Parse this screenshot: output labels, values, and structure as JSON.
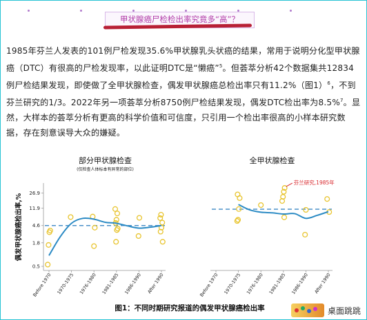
{
  "header": {
    "headline": "甲状腺癌尸检检出率究竟多“高”？"
  },
  "article": {
    "paragraph_parts": [
      "1985年芬兰人发表的101例尸检发现35.6%甲状腺乳头状癌的结果，常用于说明分化型甲状腺癌（DTC）有很高的尸检发现率，以此证明DTC是“懒癌”",
      "5",
      "。但荟萃分析42个数据集共12834例尸检结果发现，即使做了全甲状腺检查，偶发甲状腺癌总检出率只有11.2%（图1）",
      "6",
      "，不到芬兰研究的1/3。2022年另一项荟萃分析8750例尸检结果发现，偶发DTC检出率为8.5%",
      "7",
      "。显然，大样本的荟萃分析有更高的科学价值和可信度，只引用一个检出率很高的小样本研究数据，存在刻意误导大众的嫌疑。"
    ]
  },
  "figure": {
    "caption": "图1：不同时期研究报道的偶发甲状腺癌检出率",
    "watermark_text": "桌面跳跳"
  },
  "chart_data": [
    {
      "type": "scatter",
      "title": "部分甲状腺检查",
      "subtitle": "(仅检查人体标本有异常的部位)",
      "ylabel": "偶发甲状腺癌检出率,%",
      "yscale": "log",
      "yticks": [
        0.5,
        1.8,
        4.6,
        11.9,
        26.9
      ],
      "categories": [
        "Before 1970",
        "1970-1975",
        "1976-1980",
        "1981-1985",
        "1986-1990",
        "After 1990"
      ],
      "points": [
        {
          "x": "Before 1970",
          "y": 0.55
        },
        {
          "x": "Before 1970",
          "y": 1.6
        },
        {
          "x": "Before 1970",
          "y": 3.2
        },
        {
          "x": "Before 1970",
          "y": 3.5
        },
        {
          "x": "1970-1975",
          "y": 7.3
        },
        {
          "x": "1976-1980",
          "y": 1.5
        },
        {
          "x": "1976-1980",
          "y": 4.1
        },
        {
          "x": "1976-1980",
          "y": 7.5
        },
        {
          "x": "1981-1985",
          "y": 1.9
        },
        {
          "x": "1981-1985",
          "y": 3.6
        },
        {
          "x": "1981-1985",
          "y": 3.9
        },
        {
          "x": "1981-1985",
          "y": 5.3
        },
        {
          "x": "1981-1985",
          "y": 6.3
        },
        {
          "x": "1981-1985",
          "y": 8.9
        },
        {
          "x": "1981-1985",
          "y": 11.3
        },
        {
          "x": "1986-1990",
          "y": 2.6
        },
        {
          "x": "1986-1990",
          "y": 7.0
        },
        {
          "x": "After 1990",
          "y": 1.9
        },
        {
          "x": "After 1990",
          "y": 3.3
        },
        {
          "x": "After 1990",
          "y": 4.1
        },
        {
          "x": "After 1990",
          "y": 5.4
        },
        {
          "x": "After 1990",
          "y": 6.9
        },
        {
          "x": "After 1990",
          "y": 8.3
        }
      ],
      "trend": [
        [
          0,
          0.9
        ],
        [
          0.5,
          2.5
        ],
        [
          1,
          5.2
        ],
        [
          1.5,
          6.8
        ],
        [
          2,
          6.5
        ],
        [
          2.5,
          5.5
        ],
        [
          3,
          5.2
        ],
        [
          3.5,
          4.5
        ],
        [
          4,
          4.0
        ],
        [
          4.5,
          4.2
        ],
        [
          5,
          4.6
        ]
      ],
      "pooled_line": 4.6
    },
    {
      "type": "scatter",
      "title": "全甲状腺检查",
      "yscale": "log",
      "categories": [
        "Before 1970",
        "1970-1975",
        "1976-1980",
        "1981-1985",
        "1986-1990",
        "After 1990"
      ],
      "points": [
        {
          "x": "1970-1975",
          "y": 5.9
        },
        {
          "x": "1970-1975",
          "y": 6.3
        },
        {
          "x": "1970-1975",
          "y": 11.3
        },
        {
          "x": "1970-1975",
          "y": 20.5
        },
        {
          "x": "1970-1975",
          "y": 25.0
        },
        {
          "x": "1976-1980",
          "y": 14.0
        },
        {
          "x": "1981-1985",
          "y": 7.2
        },
        {
          "x": "1981-1985",
          "y": 17.5
        },
        {
          "x": "1981-1985",
          "y": 22.0
        },
        {
          "x": "1981-1985",
          "y": 29.0
        },
        {
          "x": "1981-1985",
          "y": 35.6
        },
        {
          "x": "1986-1990",
          "y": 2.8
        },
        {
          "x": "1986-1990",
          "y": 10.8
        },
        {
          "x": "After 1990",
          "y": 9.6
        },
        {
          "x": "After 1990",
          "y": 19.5
        }
      ],
      "trend": [
        [
          1,
          14.5
        ],
        [
          1.5,
          10.8
        ],
        [
          2,
          9.5
        ],
        [
          2.5,
          9.2
        ],
        [
          3,
          8.6
        ],
        [
          3.5,
          8.8
        ],
        [
          4,
          6.8
        ],
        [
          4.5,
          8.0
        ],
        [
          5,
          9.8
        ]
      ],
      "pooled_line": 11.2,
      "annotation": {
        "text": "芬兰研究,1985年",
        "x": "1981-1985",
        "y": 35.6
      }
    }
  ],
  "colors": {
    "point": "#e8c42e",
    "trend": "#2a8ac4",
    "pooled": "#4a90c8",
    "annotation": "#d8252a",
    "headline": "#b13ca7"
  }
}
